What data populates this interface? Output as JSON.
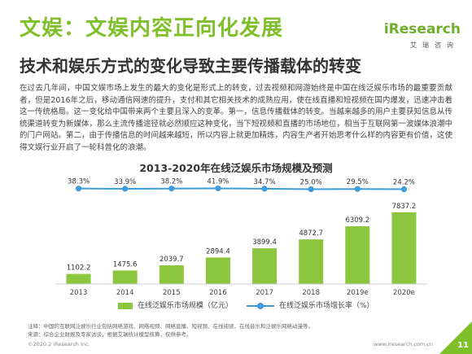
{
  "header": {
    "title": "文娱：文娱内容正向化发展",
    "subtitle": "技术和娱乐方式的变化导致主要传播载体的转变"
  },
  "logo": {
    "word": "iResearch",
    "cn": "艾瑞咨询"
  },
  "body_text": "在过去几年间，中国文娱市场上发生的最大的变化是形式上的转变，过去视频和网游始终是中国在线泛娱乐市场的最重要贡献者，但是2016年之后，移动通信网速的提升，支付和其它相关技术的成熟应用，使在线直播和短视频在国内爆发，迅速冲击着这一传统格局。这一变化给中国带来两个主要且深入的变革。第一，信息传播载体的转变。当越来越多的用户主要获知信息从传统渠道转变为新媒体，那么主流传播途径就必然顺应这种变化，当下短视频和直播的市场地位，相当于互联网第一波媒体浪潮中的门户网站。第二，由于传播信息的时间越来越短，所以内容上就更加精炼，内容生产者开始思考什么样的内容更有价值，这使得文娱行业开启了一轮科普化的浪潮。",
  "notes": {
    "line1": "注释：中国的互联网泛娱乐行业包括网络游戏、网络视频、网络直播、短视频、在线阅读、在线音乐和泛娱乐网络动漫等。",
    "line2": "来源：综合企业财报及专家访谈，根据艾瑞统计模型核算，仅供参考。"
  },
  "footer": {
    "left": "©2020.2 iResearch Inc.",
    "right": "www.iresearch.com.cn",
    "page": "11"
  },
  "colors": {
    "accent": "#7fbf2a",
    "bar": "#8cc63f",
    "line": "#3f9bd9"
  },
  "chart_data": {
    "type": "bar",
    "title": "2013-2020年在线泛娱乐市场规模及预测",
    "categories": [
      "2013",
      "2014",
      "2015",
      "2016",
      "2017",
      "2018",
      "2019e",
      "2020e"
    ],
    "series": [
      {
        "name": "在线泛娱乐市场规模（亿元）",
        "type": "bar",
        "values": [
          1102.2,
          1475.6,
          2039.7,
          2894.4,
          3899.4,
          4872.7,
          6309.2,
          7837.2
        ],
        "labels": [
          "1102.2",
          "1475.6",
          "2039.7",
          "2894.4",
          "3899.4",
          "4872.7",
          "6309.2",
          "7837.2"
        ]
      },
      {
        "name": "在线泛娱乐市场增长率（%）",
        "type": "line",
        "values": [
          38.3,
          33.9,
          38.2,
          41.9,
          34.7,
          25.0,
          29.5,
          24.2
        ],
        "labels": [
          "38.3%",
          "33.9%",
          "38.2%",
          "41.9%",
          "34.7%",
          "25.0%",
          "29.5%",
          "24.2%"
        ]
      }
    ],
    "bar_ylim": [
      0,
      8000
    ],
    "grid": false,
    "legend_position": "bottom"
  }
}
